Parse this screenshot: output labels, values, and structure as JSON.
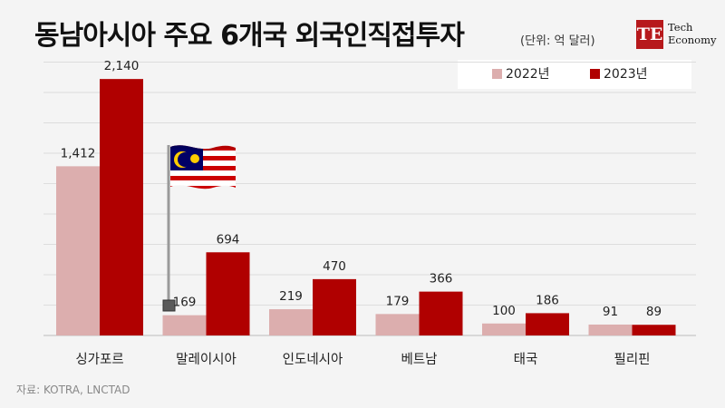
{
  "title": "동남아시아 주요 6개국 외국인직접투자",
  "unit": "(단위: 억 달러)",
  "logo": {
    "mark": "TE",
    "line1": "Tech",
    "line2": "Economy"
  },
  "source": "자료: KOTRA, LNCTAD",
  "flag_icon": "malaysia-flag-icon",
  "colors": {
    "series_2022": "#dcaeae",
    "series_2023": "#b00000"
  },
  "chart_data": {
    "type": "bar",
    "title": "동남아시아 주요 6개국 외국인직접투자",
    "xlabel": "",
    "ylabel": "",
    "ylim": [
      0,
      2300
    ],
    "grid": true,
    "legend": "top-right",
    "categories": [
      "싱가포르",
      "말레이시아",
      "인도네시아",
      "베트남",
      "태국",
      "필리핀"
    ],
    "series": [
      {
        "name": "2022년",
        "values": [
          1412,
          169,
          219,
          179,
          100,
          91
        ],
        "labels": [
          "1,412",
          "169",
          "219",
          "179",
          "100",
          "91"
        ]
      },
      {
        "name": "2023년",
        "values": [
          2140,
          694,
          470,
          366,
          186,
          89
        ],
        "labels": [
          "2,140",
          "694",
          "470",
          "366",
          "186",
          "89"
        ]
      }
    ]
  }
}
